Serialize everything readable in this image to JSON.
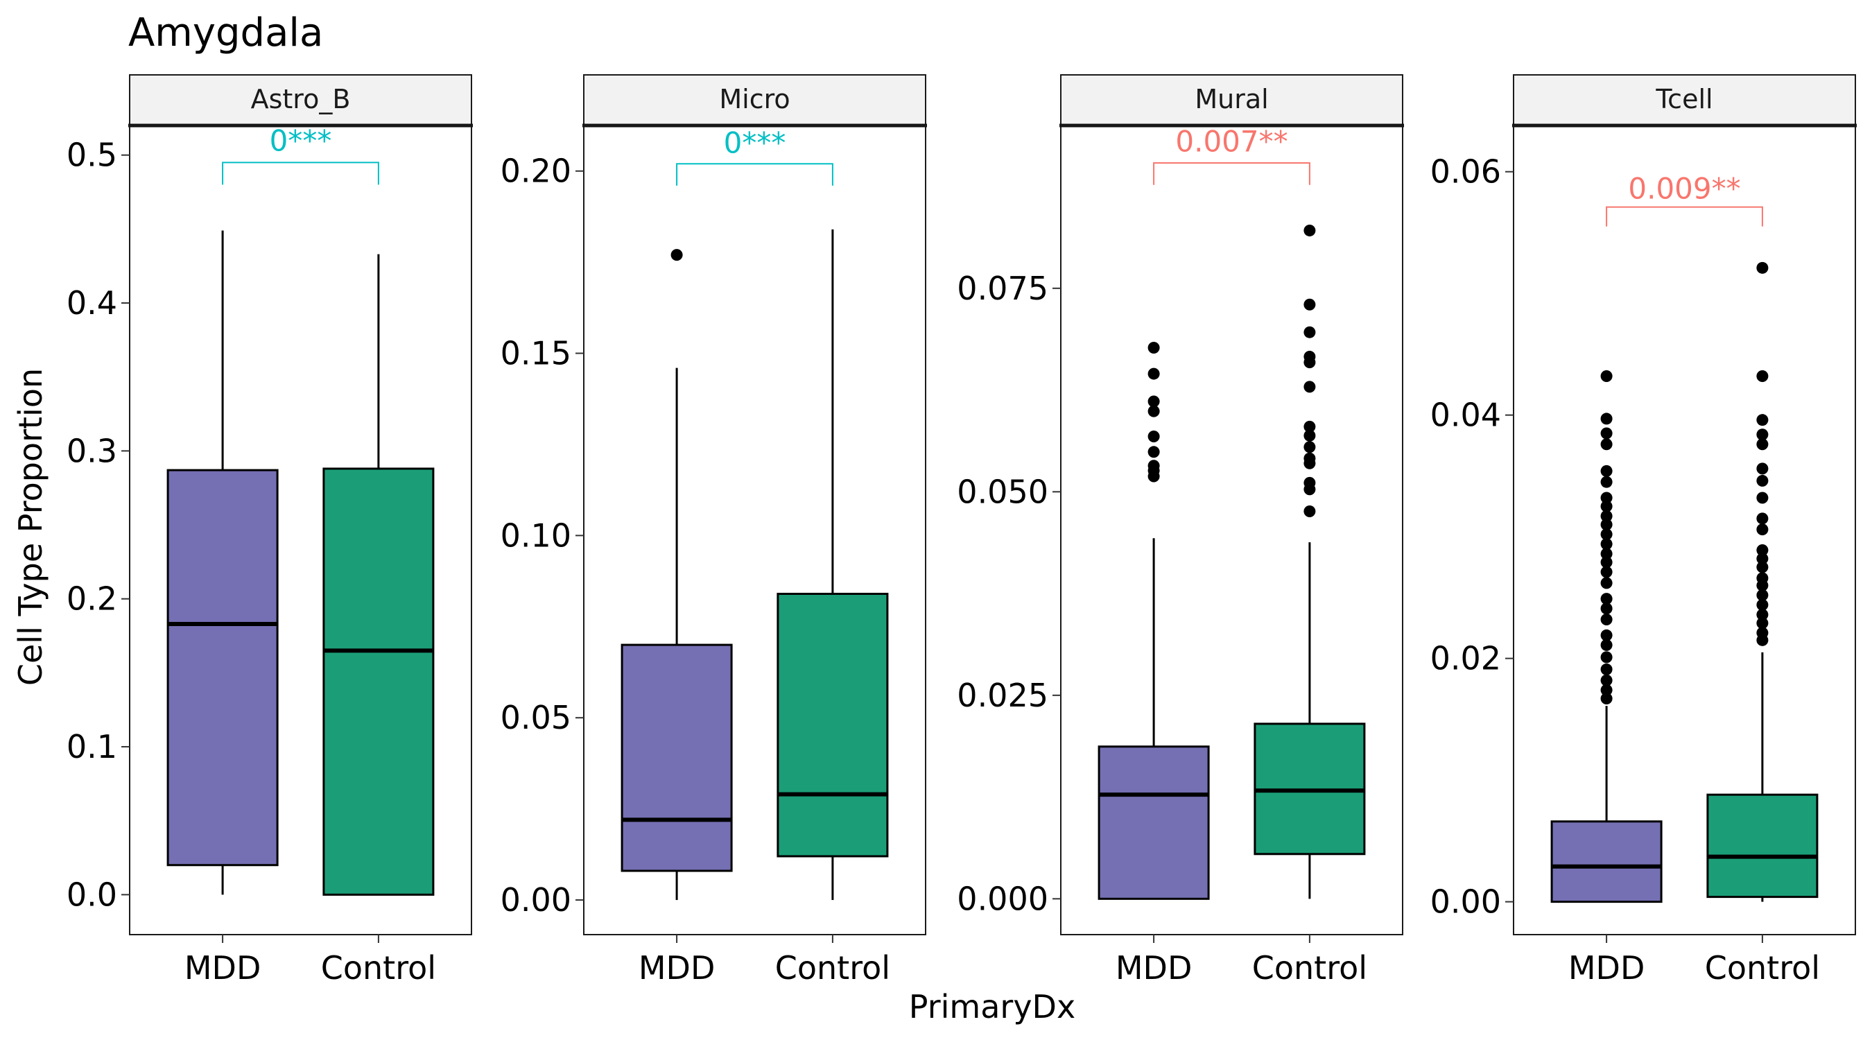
{
  "chart_data": {
    "type": "boxplot",
    "title": "Amygdala",
    "xlabel": "PrimaryDx",
    "ylabel": "Cell Type Proportion",
    "categories": [
      "MDD",
      "Control"
    ],
    "fill_colors": {
      "MDD": "#7570b3",
      "Control": "#1b9e77"
    },
    "grid": false,
    "legend": "none",
    "panels": [
      {
        "label": "Astro_B",
        "ylim": [
          -0.027,
          0.52
        ],
        "yticks": [
          0.0,
          0.1,
          0.2,
          0.3,
          0.4,
          0.5
        ],
        "ytick_labels": [
          "0.0",
          "0.1",
          "0.2",
          "0.3",
          "0.4",
          "0.5"
        ],
        "boxes": [
          {
            "group": "MDD",
            "whisker_low": 0.0,
            "q1": 0.02,
            "median": 0.183,
            "q3": 0.287,
            "whisker_high": 0.449,
            "outliers": []
          },
          {
            "group": "Control",
            "whisker_low": 0.0,
            "q1": 0.0,
            "median": 0.165,
            "q3": 0.288,
            "whisker_high": 0.433,
            "outliers": []
          }
        ],
        "comparison": {
          "label": "0***",
          "color": "#00bfc4",
          "bracket_y": 0.495,
          "bracket_tick_y": 0.48,
          "label_y": 0.503
        }
      },
      {
        "label": "Micro",
        "ylim": [
          -0.0095,
          0.2125
        ],
        "yticks": [
          0.0,
          0.05,
          0.1,
          0.15,
          0.2
        ],
        "ytick_labels": [
          "0.00",
          "0.05",
          "0.10",
          "0.15",
          "0.20"
        ],
        "boxes": [
          {
            "group": "MDD",
            "whisker_low": 0.0,
            "q1": 0.008,
            "median": 0.022,
            "q3": 0.07,
            "whisker_high": 0.146,
            "outliers": [
              0.177
            ]
          },
          {
            "group": "Control",
            "whisker_low": 0.0,
            "q1": 0.012,
            "median": 0.029,
            "q3": 0.084,
            "whisker_high": 0.184,
            "outliers": []
          }
        ],
        "comparison": {
          "label": "0***",
          "color": "#00bfc4",
          "bracket_y": 0.202,
          "bracket_tick_y": 0.196,
          "label_y": 0.205
        }
      },
      {
        "label": "Mural",
        "ylim": [
          -0.0044,
          0.095
        ],
        "yticks": [
          0.0,
          0.025,
          0.05,
          0.075
        ],
        "ytick_labels": [
          "0.000",
          "0.025",
          "0.050",
          "0.075"
        ],
        "boxes": [
          {
            "group": "MDD",
            "whisker_low": 0.0,
            "q1": 0.0,
            "median": 0.0128,
            "q3": 0.0187,
            "whisker_high": 0.0443,
            "outliers": [
              0.0677,
              0.0645,
              0.0611,
              0.0599,
              0.0568,
              0.0549,
              0.0532,
              0.0526,
              0.0519
            ]
          },
          {
            "group": "Control",
            "whisker_low": 0.0,
            "q1": 0.0055,
            "median": 0.0133,
            "q3": 0.0215,
            "whisker_high": 0.0438,
            "outliers": [
              0.0821,
              0.073,
              0.0696,
              0.0666,
              0.0659,
              0.0629,
              0.058,
              0.0569,
              0.0555,
              0.0541,
              0.0535,
              0.0511,
              0.0503,
              0.0476
            ]
          }
        ],
        "comparison": {
          "label": "0.007**",
          "color": "#f8766d",
          "bracket_y": 0.0904,
          "bracket_tick_y": 0.0877,
          "label_y": 0.0918
        }
      },
      {
        "label": "Tcell",
        "ylim": [
          -0.0027,
          0.0638
        ],
        "yticks": [
          0.0,
          0.02,
          0.04,
          0.06
        ],
        "ytick_labels": [
          "0.00",
          "0.02",
          "0.04",
          "0.06"
        ],
        "boxes": [
          {
            "group": "MDD",
            "whisker_low": 0.0,
            "q1": 0.0,
            "median": 0.0029,
            "q3": 0.0066,
            "whisker_high": 0.0161,
            "outliers": [
              0.0432,
              0.0397,
              0.0385,
              0.0376,
              0.0354,
              0.0345,
              0.0332,
              0.0325,
              0.0317,
              0.031,
              0.0302,
              0.0294,
              0.0286,
              0.0279,
              0.0271,
              0.0262,
              0.0249,
              0.0241,
              0.0232,
              0.0219,
              0.0211,
              0.0201,
              0.0191,
              0.0182,
              0.0174,
              0.0167
            ]
          },
          {
            "group": "Control",
            "whisker_low": 0.0,
            "q1": 0.0004,
            "median": 0.0037,
            "q3": 0.0088,
            "whisker_high": 0.0205,
            "outliers": [
              0.0521,
              0.0432,
              0.0396,
              0.0384,
              0.0376,
              0.0356,
              0.0346,
              0.0332,
              0.0315,
              0.0306,
              0.0289,
              0.0282,
              0.0275,
              0.0266,
              0.026,
              0.0252,
              0.0244,
              0.0236,
              0.0229,
              0.0221,
              0.0215
            ]
          }
        ],
        "comparison": {
          "label": "0.009**",
          "color": "#f8766d",
          "bracket_y": 0.0571,
          "bracket_tick_y": 0.0555,
          "label_y": 0.0578
        }
      }
    ]
  }
}
